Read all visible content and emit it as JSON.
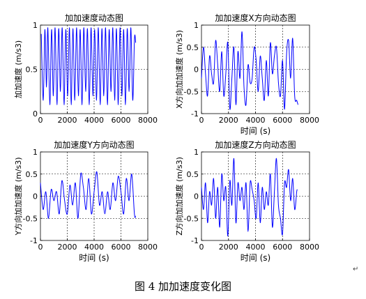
{
  "caption": {
    "text": "图 4 加加速度变化图",
    "mark": "↵"
  },
  "chart_data": [
    {
      "type": "line",
      "title": "加加速度动态图",
      "xlabel": "",
      "ylabel": "加加速度 (m/s3)",
      "xlim": [
        0,
        8000
      ],
      "ylim": [
        0,
        1
      ],
      "xticks": [
        0,
        2000,
        4000,
        6000,
        8000
      ],
      "xtick_labels": [
        "0",
        "2000",
        "4000",
        "6000",
        "8000"
      ],
      "yticks": [
        0,
        0.5,
        1
      ],
      "ytick_labels": [
        "0",
        "0.5",
        "1"
      ],
      "grid": true,
      "series": [
        {
          "color": "#0000ff",
          "x": [
            60,
            210,
            330,
            450,
            550,
            700,
            830,
            960,
            1090,
            1230,
            1360,
            1490,
            1620,
            1760,
            1890,
            2030,
            2160,
            2290,
            2420,
            2560,
            2690,
            2830,
            2960,
            3100,
            3230,
            3370,
            3500,
            3640,
            3770,
            3910,
            4040,
            4180,
            4310,
            4450,
            4580,
            4720,
            4850,
            4990,
            5120,
            5260,
            5390,
            5530,
            5660,
            5800,
            5930,
            6070,
            6200,
            6340,
            6470,
            6610,
            6740,
            6880,
            7010,
            7100
          ],
          "y": [
            0.9,
            0.15,
            0.95,
            0.3,
            0.97,
            0.1,
            0.95,
            0.2,
            0.97,
            0.1,
            0.96,
            0.25,
            0.97,
            0.1,
            0.95,
            0.2,
            0.97,
            0.1,
            0.96,
            0.15,
            0.97,
            0.2,
            0.95,
            0.1,
            0.97,
            0.25,
            0.96,
            0.1,
            0.97,
            0.2,
            0.95,
            0.15,
            0.97,
            0.1,
            0.96,
            0.2,
            0.97,
            0.1,
            0.95,
            0.25,
            0.97,
            0.15,
            0.96,
            0.1,
            0.97,
            0.2,
            0.95,
            0.1,
            0.96,
            0.25,
            0.97,
            0.15,
            0.85,
            0.8
          ]
        }
      ]
    },
    {
      "type": "line",
      "title": "加加速度X方向动态图",
      "xlabel": "时间 (s)",
      "ylabel": "X方向加加速度 (m/s3)",
      "xlim": [
        0,
        8000
      ],
      "ylim": [
        -1,
        1
      ],
      "xticks": [
        0,
        2000,
        4000,
        6000,
        8000
      ],
      "xtick_labels": [
        "0",
        "2000",
        "4000",
        "6000",
        "8000"
      ],
      "yticks": [
        -1,
        -0.5,
        0,
        0.5,
        1
      ],
      "ytick_labels": [
        "-1",
        "-0.5",
        "0",
        "0.5",
        "1"
      ],
      "grid": true,
      "series": [
        {
          "color": "#0000ff",
          "x": [
            0,
            150,
            300,
            450,
            600,
            750,
            900,
            1050,
            1200,
            1350,
            1500,
            1650,
            1800,
            1950,
            2100,
            2250,
            2400,
            2550,
            2700,
            2850,
            3000,
            3150,
            3300,
            3450,
            3600,
            3750,
            3900,
            4050,
            4200,
            4350,
            4500,
            4650,
            4800,
            4950,
            5100,
            5250,
            5400,
            5550,
            5700,
            5850,
            6000,
            6150,
            6300,
            6450,
            6600,
            6750,
            6900,
            7050,
            7150
          ],
          "y": [
            -0.2,
            0.5,
            -0.1,
            -0.6,
            0.3,
            -0.1,
            -0.3,
            0.65,
            0.1,
            -0.5,
            0.4,
            -0.6,
            -0.1,
            0.6,
            -0.9,
            -0.2,
            0.5,
            -0.8,
            0.4,
            -0.2,
            0.85,
            -0.4,
            -0.8,
            0.1,
            -0.3,
            -0.2,
            0.5,
            0.2,
            -0.5,
            0.3,
            -0.2,
            -0.7,
            0.2,
            -0.6,
            0.6,
            -0.1,
            0.3,
            0.5,
            -0.3,
            -0.6,
            0.2,
            -0.9,
            0.35,
            0.65,
            -0.2,
            0.7,
            -0.6,
            -0.7,
            -0.8
          ]
        }
      ]
    },
    {
      "type": "line",
      "title": "加加速度Y方向动态图",
      "xlabel": "时间 (s)",
      "ylabel": "Y方向加加速度 (m/s3)",
      "xlim": [
        0,
        8000
      ],
      "ylim": [
        -1,
        1
      ],
      "xticks": [
        0,
        2000,
        4000,
        6000,
        8000
      ],
      "xtick_labels": [
        "0",
        "2000",
        "4000",
        "6000",
        "8000"
      ],
      "yticks": [
        -1,
        -0.5,
        0,
        0.5,
        1
      ],
      "ytick_labels": [
        "-1",
        "-0.5",
        "0",
        "0.5",
        "1"
      ],
      "grid": true,
      "series": [
        {
          "color": "#0000ff",
          "x": [
            0,
            200,
            400,
            600,
            800,
            1000,
            1200,
            1400,
            1600,
            1800,
            2000,
            2200,
            2400,
            2600,
            2800,
            3000,
            3200,
            3400,
            3600,
            3800,
            4000,
            4200,
            4400,
            4600,
            4800,
            5000,
            5200,
            5400,
            5600,
            5800,
            6000,
            6200,
            6400,
            6600,
            6800,
            7000,
            7100
          ],
          "y": [
            0.3,
            -0.3,
            0.1,
            -0.5,
            0.15,
            -0.1,
            0.1,
            -0.4,
            0.35,
            -0.1,
            -0.4,
            0.25,
            -0.2,
            0.3,
            -0.5,
            0.5,
            0.2,
            -0.3,
            0.4,
            -0.4,
            0.1,
            0.55,
            -0.2,
            0.1,
            -0.4,
            0.1,
            -0.3,
            0.3,
            -0.1,
            0.45,
            0.1,
            -0.4,
            0.4,
            -0.1,
            0.5,
            -0.4,
            -0.45
          ]
        }
      ]
    },
    {
      "type": "line",
      "title": "加加速度Z方向动态图",
      "xlabel": "时间 (s)",
      "ylabel": "Z方向加加速度 (m/s3)",
      "xlim": [
        0,
        8000
      ],
      "ylim": [
        -1,
        1
      ],
      "xticks": [
        0,
        2000,
        4000,
        6000,
        8000
      ],
      "xtick_labels": [
        "0",
        "2000",
        "4000",
        "6000",
        "8000"
      ],
      "yticks": [
        -1,
        -0.5,
        0,
        0.5,
        1
      ],
      "ytick_labels": [
        "-1",
        "-0.5",
        "0",
        "0.5",
        "1"
      ],
      "grid": true,
      "series": [
        {
          "color": "#0000ff",
          "x": [
            0,
            150,
            300,
            450,
            600,
            750,
            900,
            1050,
            1200,
            1350,
            1500,
            1650,
            1800,
            1950,
            2100,
            2250,
            2400,
            2550,
            2700,
            2850,
            3000,
            3150,
            3300,
            3450,
            3600,
            3750,
            3900,
            4050,
            4200,
            4350,
            4500,
            4650,
            4800,
            4950,
            5100,
            5250,
            5400,
            5550,
            5700,
            5850,
            6000,
            6150,
            6300,
            6450,
            6600,
            6750,
            6900,
            7050,
            7100
          ],
          "y": [
            0.2,
            -0.3,
            0.3,
            -0.6,
            0.1,
            -0.2,
            0.4,
            -0.5,
            0.2,
            -0.7,
            0.5,
            -0.1,
            0.2,
            -0.9,
            0.35,
            -0.2,
            0.85,
            -0.6,
            0.3,
            -0.1,
            0.2,
            -0.3,
            0.3,
            -0.8,
            0.3,
            0.15,
            -0.1,
            -0.5,
            0.3,
            -0.6,
            0.2,
            -0.3,
            0.1,
            -0.2,
            0.5,
            -0.7,
            0.1,
            0.85,
            -0.2,
            -0.5,
            -0.85,
            0.3,
            0.2,
            0.6,
            -0.1,
            0.4,
            -0.3,
            0.1,
            0.15
          ]
        }
      ]
    }
  ]
}
